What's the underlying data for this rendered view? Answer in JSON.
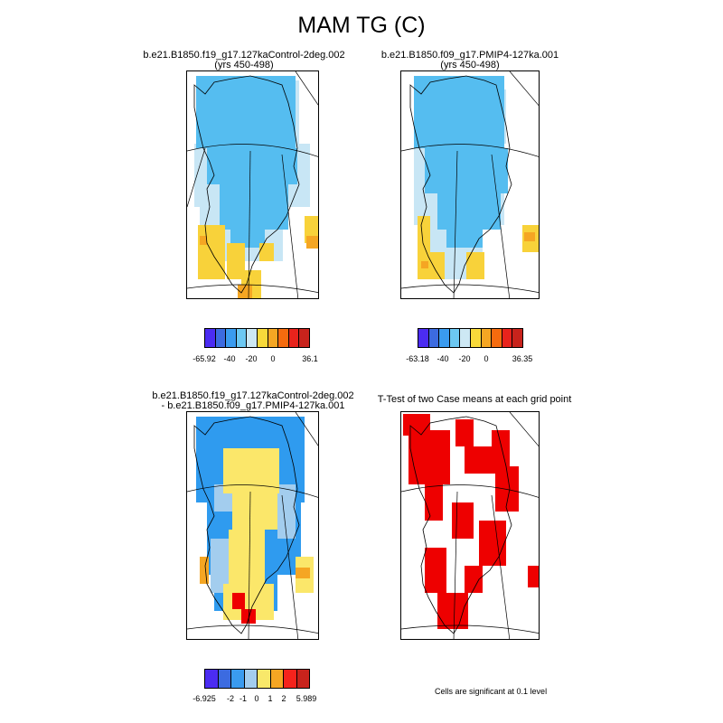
{
  "title": "MAM TG (C)",
  "panels": [
    {
      "title_line1": "b.e21.B1850.f19_g17.127kaControl-2deg.002",
      "title_line2": "(yrs 450-498)"
    },
    {
      "title_line1": "b.e21.B1850.f09_g17.PMIP4-127ka.001",
      "title_line2": "(yrs 450-498)"
    },
    {
      "title_line1": "b.e21.B1850.f19_g17.127kaControl-2deg.002",
      "title_line2": "- b.e21.B1850.f09_g17.PMIP4-127ka.001"
    },
    {
      "title_line1": "T-Test of two Case means at each grid point",
      "title_line2": ""
    }
  ],
  "colorbars": {
    "cb1": {
      "colors": [
        "#4b2cf2",
        "#3c6be0",
        "#3a9bef",
        "#6cc8f2",
        "#cde8f4",
        "#f8d93a",
        "#f5a623",
        "#f56b0e",
        "#e8231c",
        "#c8231c"
      ],
      "labels": [
        "-65.92",
        "-40",
        "-20",
        "0",
        "36.1"
      ]
    },
    "cb2": {
      "colors": [
        "#4b2cf2",
        "#3c6be0",
        "#3a9bef",
        "#6cc8f2",
        "#cde8f4",
        "#f8d93a",
        "#f5a623",
        "#f56b0e",
        "#e8231c",
        "#c8231c"
      ],
      "labels": [
        "-63.18",
        "-40",
        "-20",
        "0",
        "36.35"
      ]
    },
    "cb3": {
      "colors": [
        "#4b2cf2",
        "#3c6be0",
        "#3a9bef",
        "#a3cdee",
        "#f8e86a",
        "#f5a623",
        "#f5231c",
        "#c8231c"
      ],
      "labels": [
        "-6.925",
        "-2",
        "-1",
        "0",
        "1",
        "2",
        "5.989"
      ]
    }
  },
  "note": "Cells are significant at 0.1 level",
  "colors": {
    "ice_blue": "#55bdf0",
    "light_blue": "#c8e6f5",
    "yellow": "#f8d23a",
    "orange": "#f5a623",
    "red": "#ee0000",
    "diff_yellow": "#fbe76a",
    "diff_blue": "#2f9bef",
    "diff_mid": "#a3cdee"
  }
}
